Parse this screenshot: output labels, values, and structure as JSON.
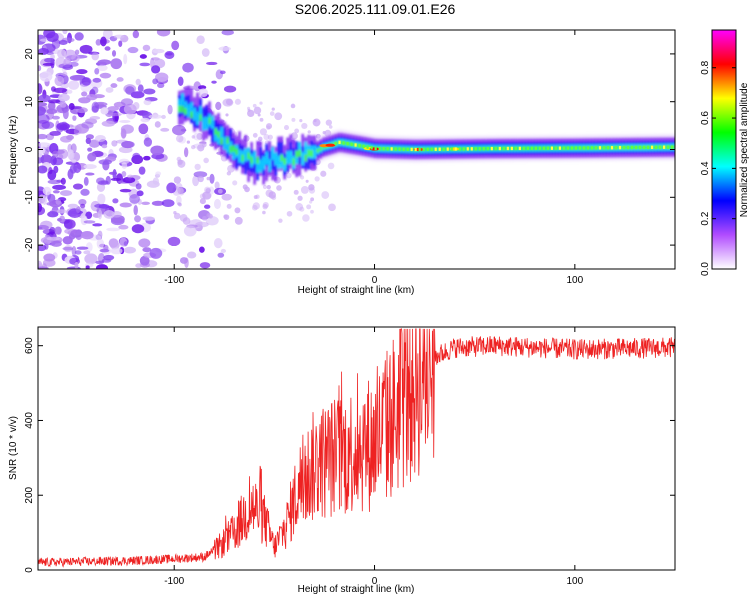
{
  "title": "S206.2025.111.09.01.E26",
  "chart_data": [
    {
      "type": "heatmap",
      "xlabel": "Height of straight line (km)",
      "ylabel": "Frequency (Hz)",
      "xlim": [
        -168,
        150
      ],
      "ylim": [
        -25,
        25
      ],
      "xticks": [
        -100,
        0,
        100
      ],
      "yticks": [
        -20,
        -10,
        0,
        10,
        20
      ],
      "colorbar": {
        "label": "Normalized spectral amplitude",
        "range": [
          0,
          0.95
        ],
        "ticks": [
          0.0,
          0.2,
          0.4,
          0.6,
          0.8
        ],
        "colors": [
          "#ffffff",
          "#b14cff",
          "#0000ff",
          "#00ffff",
          "#00ff00",
          "#ffff00",
          "#ff0000",
          "#ff00ff"
        ]
      },
      "ridge": [
        {
          "x": -98,
          "y": 9.5
        },
        {
          "x": -90,
          "y": 8
        },
        {
          "x": -82,
          "y": 5
        },
        {
          "x": -75,
          "y": 2
        },
        {
          "x": -68,
          "y": -1
        },
        {
          "x": -60,
          "y": -3
        },
        {
          "x": -52,
          "y": -2
        },
        {
          "x": -45,
          "y": -2
        },
        {
          "x": -38,
          "y": -1
        },
        {
          "x": -32,
          "y": -1
        },
        {
          "x": -26,
          "y": 0.5
        },
        {
          "x": -18,
          "y": 1.5
        },
        {
          "x": -8,
          "y": 0.8
        },
        {
          "x": 0,
          "y": 0.2
        },
        {
          "x": 20,
          "y": 0
        },
        {
          "x": 60,
          "y": 0.2
        },
        {
          "x": 100,
          "y": 0.3
        },
        {
          "x": 150,
          "y": 0.5
        }
      ]
    },
    {
      "type": "line",
      "xlabel": "Height of straight line (km)",
      "ylabel": "SNR (10 * v/v)",
      "xlim": [
        -168,
        150
      ],
      "ylim": [
        0,
        650
      ],
      "xticks": [
        -100,
        0,
        100
      ],
      "yticks": [
        0,
        200,
        400,
        600
      ],
      "color": "#ee2222",
      "envelope": [
        {
          "x": -168,
          "y": 20
        },
        {
          "x": -120,
          "y": 25
        },
        {
          "x": -100,
          "y": 30
        },
        {
          "x": -85,
          "y": 35
        },
        {
          "x": -78,
          "y": 60
        },
        {
          "x": -70,
          "y": 100
        },
        {
          "x": -62,
          "y": 170
        },
        {
          "x": -56,
          "y": 150
        },
        {
          "x": -50,
          "y": 60
        },
        {
          "x": -44,
          "y": 120
        },
        {
          "x": -38,
          "y": 220
        },
        {
          "x": -30,
          "y": 280
        },
        {
          "x": -22,
          "y": 300
        },
        {
          "x": -15,
          "y": 310
        },
        {
          "x": -8,
          "y": 330
        },
        {
          "x": 0,
          "y": 340
        },
        {
          "x": 8,
          "y": 400
        },
        {
          "x": 15,
          "y": 460
        },
        {
          "x": 22,
          "y": 530
        },
        {
          "x": 30,
          "y": 570
        },
        {
          "x": 40,
          "y": 595
        },
        {
          "x": 60,
          "y": 600
        },
        {
          "x": 100,
          "y": 590
        },
        {
          "x": 150,
          "y": 595
        }
      ]
    }
  ]
}
